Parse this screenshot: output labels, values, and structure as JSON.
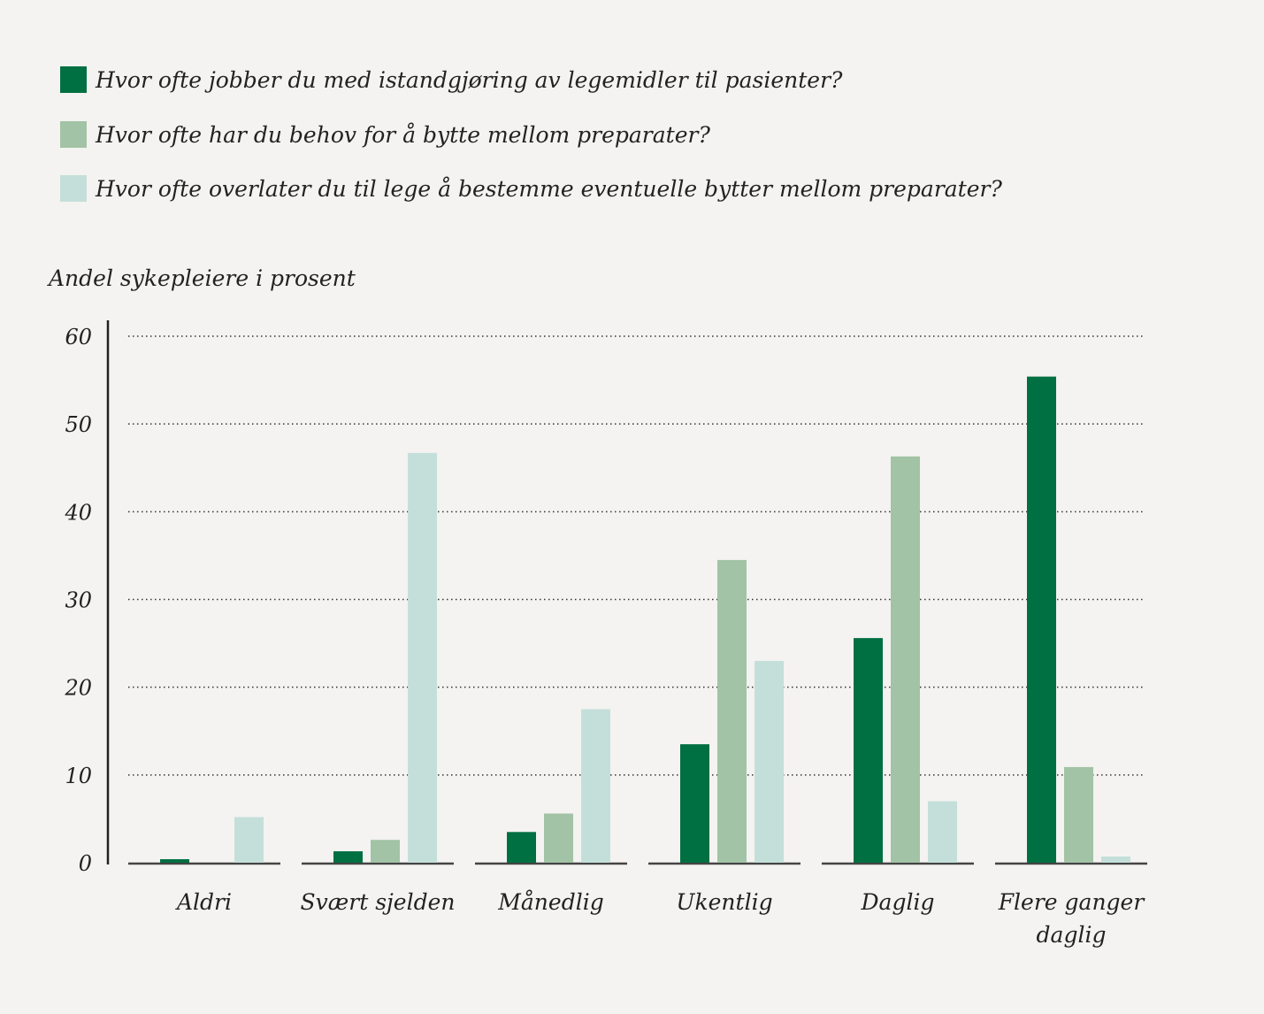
{
  "chart_data": {
    "type": "bar",
    "title": "",
    "xlabel": "",
    "ylabel": "Andel sykepleiere i prosent",
    "ylim": [
      0,
      60
    ],
    "yticks": [
      0,
      10,
      20,
      30,
      40,
      50,
      60
    ],
    "grid": "horizontal dotted",
    "legend_position": "top-left",
    "categories": [
      "Aldri",
      "Svært sjelden",
      "Månedlig",
      "Ukentlig",
      "Daglig",
      [
        "Flere ganger",
        "daglig"
      ]
    ],
    "series": [
      {
        "name": "Hvor ofte jobber du med istandgjøring av legemidler til pasienter?",
        "color": "#006f41",
        "values": [
          0.4,
          1.3,
          3.5,
          13.5,
          25.6,
          55.4
        ]
      },
      {
        "name": "Hvor ofte har du behov for å bytte mellom preparater?",
        "color": "#a2c3a5",
        "values": [
          0,
          2.6,
          5.6,
          34.5,
          46.3,
          10.9
        ]
      },
      {
        "name": "Hvor ofte overlater du til lege å bestemme eventuelle bytter mellom preparater?",
        "color": "#c4dfd9",
        "values": [
          5.2,
          46.7,
          17.5,
          23.0,
          7.0,
          0.7
        ]
      }
    ]
  }
}
